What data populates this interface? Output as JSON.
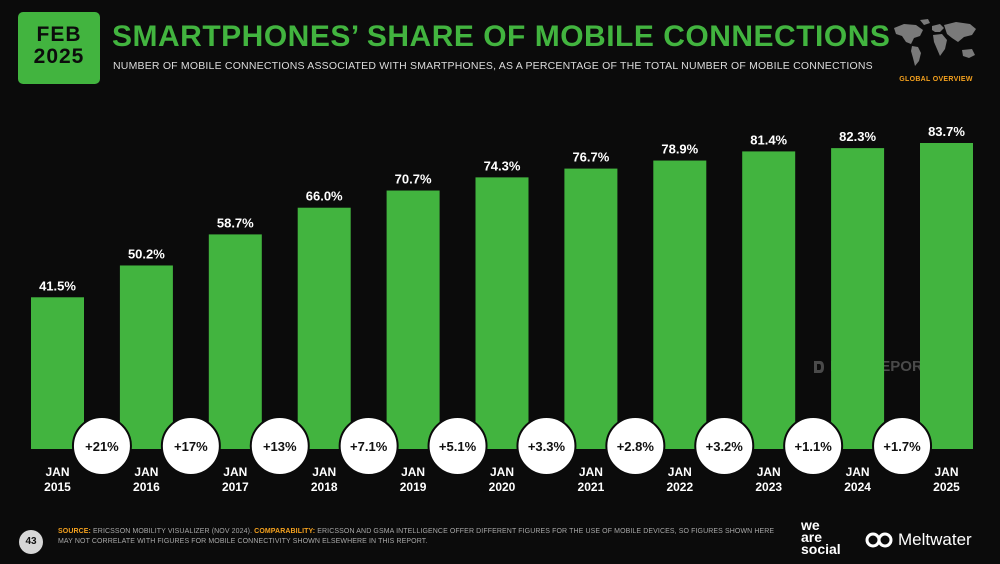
{
  "badge": {
    "month": "FEB",
    "year": "2025"
  },
  "title": "SMARTPHONES’ SHARE OF MOBILE CONNECTIONS",
  "subtitle": "NUMBER OF MOBILE CONNECTIONS ASSOCIATED WITH SMARTPHONES, AS A PERCENTAGE OF THE TOTAL NUMBER OF MOBILE CONNECTIONS",
  "region_label": "GLOBAL OVERVIEW",
  "watermark": "DATAREPORTAL",
  "colors": {
    "accent": "#42b43f",
    "background": "#0b0b0b",
    "label": "#f4a11e"
  },
  "chart_data": {
    "type": "bar",
    "categories": [
      "JAN 2015",
      "JAN 2016",
      "JAN 2017",
      "JAN 2018",
      "JAN 2019",
      "JAN 2020",
      "JAN 2021",
      "JAN 2022",
      "JAN 2023",
      "JAN 2024",
      "JAN 2025"
    ],
    "category_lines": [
      [
        "JAN",
        "2015"
      ],
      [
        "JAN",
        "2016"
      ],
      [
        "JAN",
        "2017"
      ],
      [
        "JAN",
        "2018"
      ],
      [
        "JAN",
        "2019"
      ],
      [
        "JAN",
        "2020"
      ],
      [
        "JAN",
        "2021"
      ],
      [
        "JAN",
        "2022"
      ],
      [
        "JAN",
        "2023"
      ],
      [
        "JAN",
        "2024"
      ],
      [
        "JAN",
        "2025"
      ]
    ],
    "values": [
      41.5,
      50.2,
      58.7,
      66.0,
      70.7,
      74.3,
      76.7,
      78.9,
      81.4,
      82.3,
      83.7
    ],
    "value_labels": [
      "41.5%",
      "50.2%",
      "58.7%",
      "66.0%",
      "70.7%",
      "74.3%",
      "76.7%",
      "78.9%",
      "81.4%",
      "82.3%",
      "83.7%"
    ],
    "changes": [
      "+21%",
      "+17%",
      "+13%",
      "+7.1%",
      "+5.1%",
      "+3.3%",
      "+2.8%",
      "+3.2%",
      "+1.1%",
      "+1.7%"
    ],
    "ylim": [
      0,
      100
    ],
    "grid": false,
    "color": "#42b43f"
  },
  "footer": {
    "page": "43",
    "source_label": "SOURCE:",
    "source_text": "ERICSSON MOBILITY VISUALIZER (NOV 2024).",
    "comparability_label": "COMPARABILITY:",
    "comparability_text": "ERICSSON AND GSMA INTELLIGENCE OFFER DIFFERENT FIGURES FOR THE USE OF MOBILE DEVICES, SO FIGURES SHOWN HERE MAY NOT CORRELATE WITH FIGURES FOR MOBILE CONNECTIVITY SHOWN ELSEWHERE IN THIS REPORT.",
    "brand_1_lines": [
      "we",
      "are",
      "social"
    ],
    "brand_2": "Meltwater"
  }
}
